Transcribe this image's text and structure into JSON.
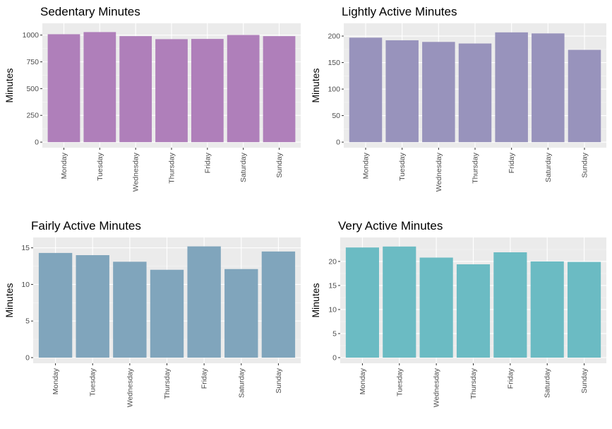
{
  "chart_data": [
    {
      "type": "bar",
      "title": "Sedentary Minutes",
      "xlabel": "",
      "ylabel": "Minutes",
      "categories": [
        "Monday",
        "Tuesday",
        "Wednesday",
        "Thursday",
        "Friday",
        "Saturday",
        "Sunday"
      ],
      "values": [
        1008,
        1028,
        990,
        962,
        964,
        1001,
        990
      ],
      "ylim": [
        0,
        1075
      ],
      "yticks": [
        0,
        250,
        500,
        750,
        1000
      ],
      "color": "#af7fba",
      "grid": true,
      "legend": "none"
    },
    {
      "type": "bar",
      "title": "Lightly Active Minutes",
      "xlabel": "",
      "ylabel": "Minutes",
      "categories": [
        "Monday",
        "Tuesday",
        "Wednesday",
        "Thursday",
        "Friday",
        "Saturday",
        "Sunday"
      ],
      "values": [
        197,
        192,
        189,
        186,
        207,
        205,
        174
      ],
      "ylim": [
        0,
        217
      ],
      "yticks": [
        0,
        50,
        100,
        150,
        200
      ],
      "color": "#9893bc",
      "grid": true,
      "legend": "none"
    },
    {
      "type": "bar",
      "title": "Fairly Active Minutes",
      "xlabel": "",
      "ylabel": "Minutes",
      "categories": [
        "Monday",
        "Tuesday",
        "Wednesday",
        "Thursday",
        "Friday",
        "Saturday",
        "Sunday"
      ],
      "values": [
        14.3,
        14.0,
        13.1,
        12.0,
        15.2,
        12.1,
        14.5
      ],
      "ylim": [
        0,
        15.9
      ],
      "yticks": [
        0,
        5,
        10,
        15
      ],
      "color": "#80a5bc",
      "grid": true,
      "legend": "none"
    },
    {
      "type": "bar",
      "title": "Very Active Minutes",
      "xlabel": "",
      "ylabel": "Minutes",
      "categories": [
        "Monday",
        "Tuesday",
        "Wednesday",
        "Thursday",
        "Friday",
        "Saturday",
        "Sunday"
      ],
      "values": [
        22.9,
        23.1,
        20.8,
        19.4,
        21.9,
        20.0,
        19.9
      ],
      "ylim": [
        0,
        24.2
      ],
      "yticks": [
        0,
        5,
        10,
        15,
        20
      ],
      "color": "#6bbbc3",
      "grid": true,
      "legend": "none"
    }
  ]
}
